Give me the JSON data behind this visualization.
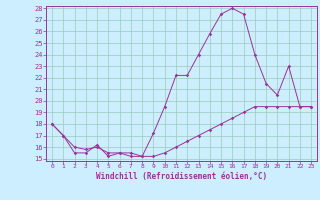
{
  "title": "",
  "xlabel": "Windchill (Refroidissement éolien,°C)",
  "bg_color": "#cceeff",
  "grid_color": "#99ccbb",
  "line_color": "#993399",
  "xlim": [
    -0.5,
    23.5
  ],
  "ylim": [
    14.8,
    28.2
  ],
  "xticks": [
    0,
    1,
    2,
    3,
    4,
    5,
    6,
    7,
    8,
    9,
    10,
    11,
    12,
    13,
    14,
    15,
    16,
    17,
    18,
    19,
    20,
    21,
    22,
    23
  ],
  "yticks": [
    15,
    16,
    17,
    18,
    19,
    20,
    21,
    22,
    23,
    24,
    25,
    26,
    27,
    28
  ],
  "series1": [
    [
      0,
      18.0
    ],
    [
      1,
      17.0
    ],
    [
      2,
      15.5
    ],
    [
      3,
      15.5
    ],
    [
      4,
      16.2
    ],
    [
      5,
      15.2
    ],
    [
      6,
      15.5
    ],
    [
      7,
      15.2
    ],
    [
      8,
      15.2
    ],
    [
      9,
      17.2
    ],
    [
      10,
      19.5
    ],
    [
      11,
      22.2
    ],
    [
      12,
      22.2
    ],
    [
      13,
      24.0
    ],
    [
      14,
      25.8
    ],
    [
      15,
      27.5
    ],
    [
      16,
      28.0
    ],
    [
      17,
      27.5
    ],
    [
      18,
      24.0
    ],
    [
      19,
      21.5
    ],
    [
      20,
      20.5
    ],
    [
      21,
      23.0
    ],
    [
      22,
      19.5
    ],
    [
      23,
      19.5
    ]
  ],
  "series2": [
    [
      0,
      18.0
    ],
    [
      1,
      17.0
    ],
    [
      2,
      16.0
    ],
    [
      3,
      15.8
    ],
    [
      4,
      16.0
    ],
    [
      5,
      15.5
    ],
    [
      6,
      15.5
    ],
    [
      7,
      15.5
    ],
    [
      8,
      15.2
    ],
    [
      9,
      15.2
    ],
    [
      10,
      15.5
    ],
    [
      11,
      16.0
    ],
    [
      12,
      16.5
    ],
    [
      13,
      17.0
    ],
    [
      14,
      17.5
    ],
    [
      15,
      18.0
    ],
    [
      16,
      18.5
    ],
    [
      17,
      19.0
    ],
    [
      18,
      19.5
    ],
    [
      19,
      19.5
    ],
    [
      20,
      19.5
    ],
    [
      21,
      19.5
    ],
    [
      22,
      19.5
    ],
    [
      23,
      19.5
    ]
  ]
}
